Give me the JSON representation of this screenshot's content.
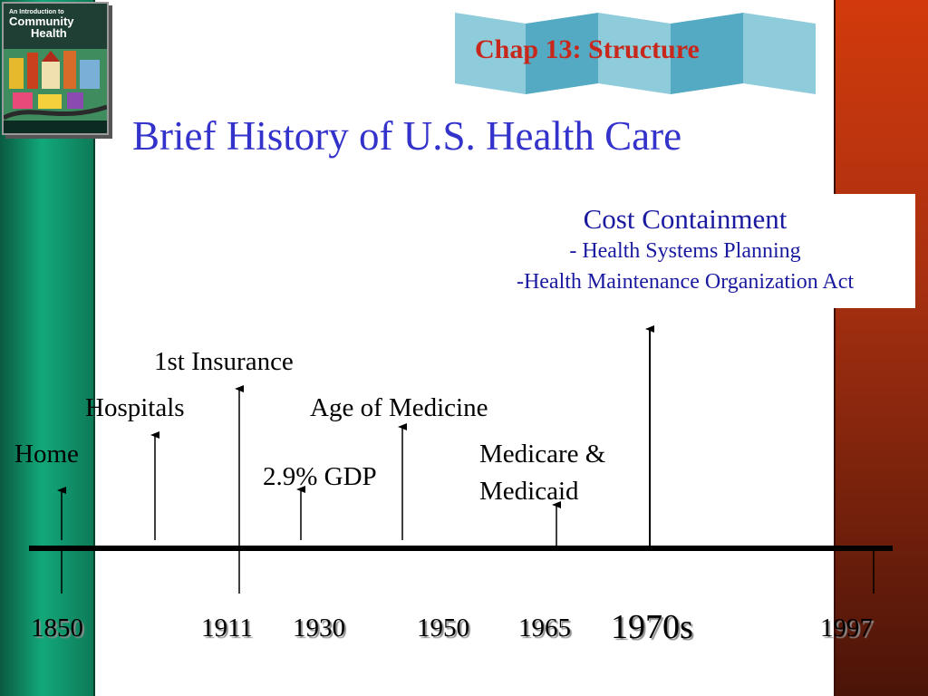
{
  "slide": {
    "chapter_banner": "Chap 13: Structure",
    "title": "Brief History of U.S. Health Care",
    "book_cover": {
      "line1": "An Introduction to",
      "line2": "Community",
      "line3": "Health"
    },
    "colors": {
      "title": "#3333cc",
      "chapter": "#c8281c",
      "cost_text": "#1a1aa0",
      "left_bar": "#0e7a58",
      "right_bar": "#b8320e"
    }
  },
  "cost_containment": {
    "heading": "Cost Containment",
    "line1": "- Health Systems Planning",
    "line2": "-Health Maintenance Organization Act"
  },
  "events": [
    "Home",
    "Hospitals",
    "1st Insurance",
    "2.9% GDP",
    "Age of Medicine",
    "Medicare &",
    "Medicaid"
  ],
  "years": [
    "1850",
    "1911",
    "1930",
    "1950",
    "1965",
    "1970s",
    "1997"
  ]
}
